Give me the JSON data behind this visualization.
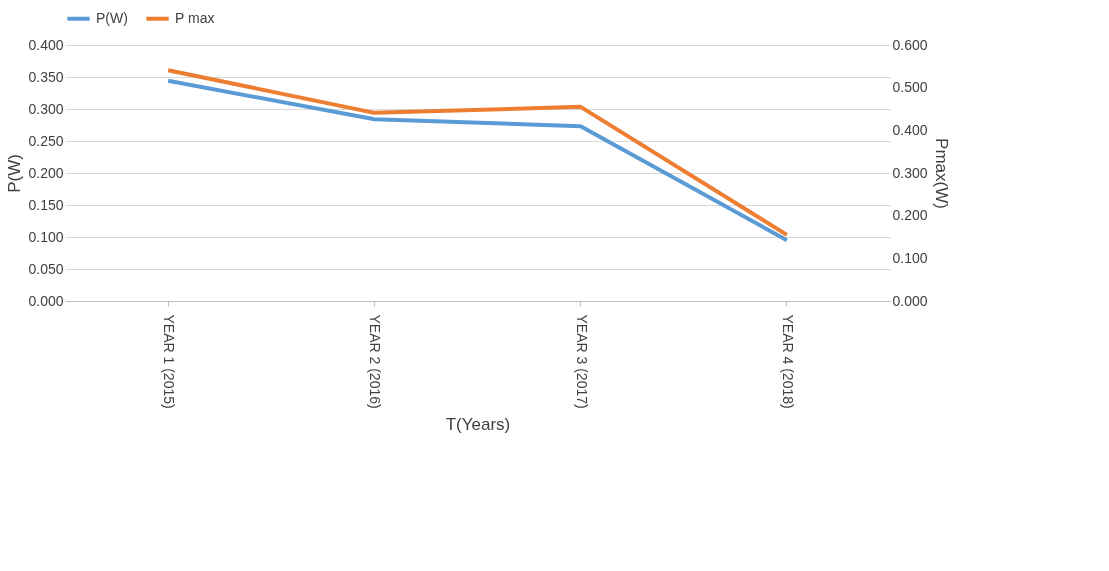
{
  "chart_data": {
    "type": "line",
    "xlabel": "T(Years)",
    "ylabel": "P(W)",
    "y2label": "Pmax(W)",
    "categories": [
      "YEAR  1 (2015)",
      "YEAR  2 (2016)",
      "YEAR  3 (2017)",
      "YEAR  4 (2018)"
    ],
    "series": [
      {
        "name": "P(W)",
        "color": "#5b9bd5",
        "values": [
          0.344,
          0.284,
          0.273,
          0.095
        ]
      },
      {
        "name": "P max",
        "color": "#ed7d31",
        "axis": "y2",
        "values": [
          0.541,
          0.441,
          0.455,
          0.155
        ]
      }
    ],
    "ylim": [
      0,
      0.4
    ],
    "yticks": [
      {
        "value": 0,
        "label": "0.000"
      },
      {
        "value": 0.05,
        "label": "0.050"
      },
      {
        "value": 0.1,
        "label": "0.100"
      },
      {
        "value": 0.15,
        "label": "0.150"
      },
      {
        "value": 0.2,
        "label": "0.200"
      },
      {
        "value": 0.25,
        "label": "0.250"
      },
      {
        "value": 0.3,
        "label": "0.300"
      },
      {
        "value": 0.35,
        "label": "0.350"
      },
      {
        "value": 0.4,
        "label": "0.400"
      }
    ],
    "y2lim": [
      0,
      0.6
    ],
    "y2ticks": [
      {
        "value": 0,
        "label": "0.000"
      },
      {
        "value": 0.1,
        "label": "0.100"
      },
      {
        "value": 0.2,
        "label": "0.200"
      },
      {
        "value": 0.3,
        "label": "0.300"
      },
      {
        "value": 0.4,
        "label": "0.400"
      },
      {
        "value": 0.5,
        "label": "0.500"
      },
      {
        "value": 0.6,
        "label": "0.600"
      }
    ],
    "grid": "y",
    "legend": "top",
    "marker": "none",
    "line_style": "solid"
  }
}
